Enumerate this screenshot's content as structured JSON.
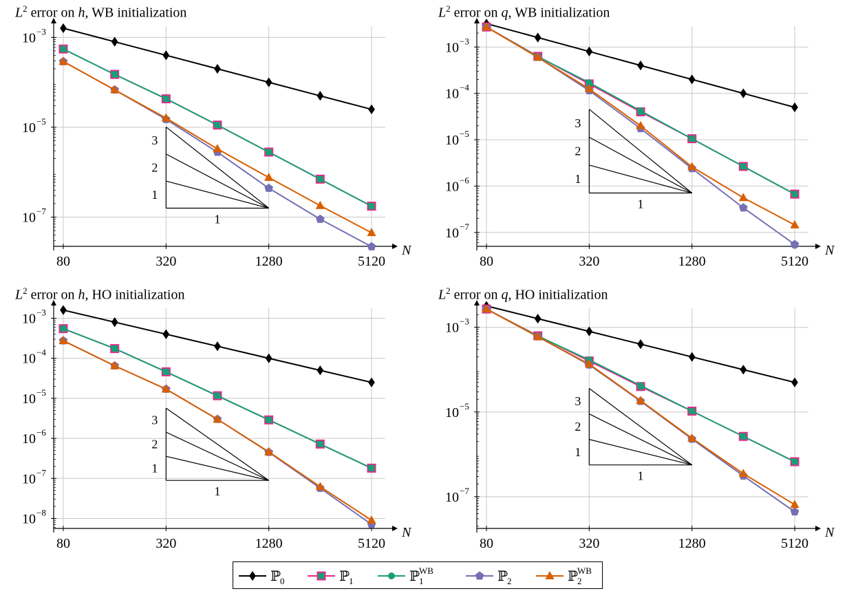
{
  "colors": {
    "P0": "#000000",
    "P1": "#e7298a",
    "P1WB": "#1b9e77",
    "P2": "#7570b3",
    "P2WB": "#d95f02",
    "grid": "#c8c8c8"
  },
  "legend": {
    "items": [
      {
        "key": "P0",
        "label": "ℙ",
        "sub": "0",
        "sup": "",
        "marker": "diamond"
      },
      {
        "key": "P1",
        "label": "ℙ",
        "sub": "1",
        "sup": "",
        "marker": "square"
      },
      {
        "key": "P1WB",
        "label": "ℙ",
        "sub": "1",
        "sup": "WB",
        "marker": "circle"
      },
      {
        "key": "P2",
        "label": "ℙ",
        "sub": "2",
        "sup": "",
        "marker": "pentagon"
      },
      {
        "key": "P2WB",
        "label": "ℙ",
        "sub": "2",
        "sup": "WB",
        "marker": "triangle"
      }
    ]
  },
  "chart_data": [
    {
      "type": "line",
      "title_prefix": "L",
      "title_sup": "2",
      "title_mid": " error on ",
      "title_var": "h",
      "title_suffix": ", WB initialization",
      "xlabel": "N",
      "xscale": "log2",
      "yscale": "log10",
      "x": [
        80,
        160,
        320,
        640,
        1280,
        2560,
        5120
      ],
      "xticks": [
        80,
        320,
        1280,
        5120
      ],
      "yticks": [
        -3,
        -5,
        -7
      ],
      "ylim_log": [
        -7.65,
        -2.75
      ],
      "slope_triangle": {
        "x0": 320,
        "x1": 1280,
        "y_base_log": -6.8,
        "labels": [
          "3",
          "2",
          "1"
        ],
        "base_label": "1"
      },
      "series": [
        {
          "key": "P0",
          "values": [
            0.0016,
            0.0008,
            0.0004,
            0.0002,
            0.0001,
            5e-05,
            2.5e-05
          ]
        },
        {
          "key": "P1",
          "values": [
            0.00055,
            0.00015,
            4.3e-05,
            1.12e-05,
            2.8e-06,
            7e-07,
            1.75e-07
          ]
        },
        {
          "key": "P1WB",
          "values": [
            0.00055,
            0.00015,
            4.3e-05,
            1.12e-05,
            2.8e-06,
            7e-07,
            1.75e-07
          ]
        },
        {
          "key": "P2",
          "values": [
            0.00029,
            6.8e-05,
            1.5e-05,
            2.8e-06,
            4.4e-07,
            9e-08,
            2.2e-08
          ]
        },
        {
          "key": "P2WB",
          "values": [
            0.00029,
            6.8e-05,
            1.6e-05,
            3.3e-06,
            7.6e-07,
            1.8e-07,
            4.5e-08
          ]
        }
      ]
    },
    {
      "type": "line",
      "title_prefix": "L",
      "title_sup": "2",
      "title_mid": " error on ",
      "title_var": "q",
      "title_suffix": ", WB initialization",
      "xlabel": "N",
      "xscale": "log2",
      "yscale": "log10",
      "x": [
        80,
        160,
        320,
        640,
        1280,
        2560,
        5120
      ],
      "xticks": [
        80,
        320,
        1280,
        5120
      ],
      "yticks": [
        -3,
        -4,
        -5,
        -6,
        -7
      ],
      "ylim_log": [
        -7.3,
        -2.55
      ],
      "slope_triangle": {
        "x0": 320,
        "x1": 1280,
        "y_base_log": -6.15,
        "labels": [
          "3",
          "2",
          "1"
        ],
        "base_label": "1"
      },
      "series": [
        {
          "key": "P0",
          "values": [
            0.0032,
            0.0016,
            0.0008,
            0.0004,
            0.0002,
            0.0001,
            5e-05
          ]
        },
        {
          "key": "P1",
          "values": [
            0.0027,
            0.00063,
            0.00016,
            4e-05,
            1.05e-05,
            2.65e-06,
            6.7e-07
          ]
        },
        {
          "key": "P1WB",
          "values": [
            0.0027,
            0.00062,
            0.00017,
            4.2e-05,
            1.05e-05,
            2.65e-06,
            6.7e-07
          ]
        },
        {
          "key": "P2",
          "values": [
            0.0027,
            0.0006,
            0.000115,
            1.75e-05,
            2.4e-06,
            3.4e-07,
            5.5e-08
          ]
        },
        {
          "key": "P2WB",
          "values": [
            0.0027,
            0.0006,
            0.000125,
            2e-05,
            2.6e-06,
            5.6e-07,
            1.45e-07
          ]
        }
      ]
    },
    {
      "type": "line",
      "title_prefix": "L",
      "title_sup": "2",
      "title_mid": " error on ",
      "title_var": "h",
      "title_suffix": ", HO initialization",
      "xlabel": "N",
      "xscale": "log2",
      "yscale": "log10",
      "x": [
        80,
        160,
        320,
        640,
        1280,
        2560,
        5120
      ],
      "xticks": [
        80,
        320,
        1280,
        5120
      ],
      "yticks": [
        -3,
        -4,
        -5,
        -6,
        -7,
        -8
      ],
      "ylim_log": [
        -8.25,
        -2.75
      ],
      "slope_triangle": {
        "x0": 320,
        "x1": 1280,
        "y_base_log": -7.05,
        "labels": [
          "3",
          "2",
          "1"
        ],
        "base_label": "1"
      },
      "series": [
        {
          "key": "P0",
          "values": [
            0.0016,
            0.0008,
            0.0004,
            0.0002,
            0.0001,
            5e-05,
            2.5e-05
          ]
        },
        {
          "key": "P1",
          "values": [
            0.00055,
            0.000175,
            4.6e-05,
            1.16e-05,
            2.9e-06,
            7.2e-07,
            1.8e-07
          ]
        },
        {
          "key": "P1WB",
          "values": [
            0.00055,
            0.000175,
            4.6e-05,
            1.16e-05,
            2.9e-06,
            7.2e-07,
            1.8e-07
          ]
        },
        {
          "key": "P2",
          "values": [
            0.000275,
            6.5e-05,
            1.7e-05,
            3e-06,
            4.5e-07,
            5.7e-08,
            7.1e-09
          ]
        },
        {
          "key": "P2WB",
          "values": [
            0.000275,
            6.5e-05,
            1.7e-05,
            3e-06,
            4.6e-07,
            6.2e-08,
            9e-09
          ]
        }
      ]
    },
    {
      "type": "line",
      "title_prefix": "L",
      "title_sup": "2",
      "title_mid": " error on ",
      "title_var": "q",
      "title_suffix": ", HO initialization",
      "xlabel": "N",
      "xscale": "log2",
      "yscale": "log10",
      "x": [
        80,
        160,
        320,
        640,
        1280,
        2560,
        5120
      ],
      "xticks": [
        80,
        320,
        1280,
        5120
      ],
      "yticks": [
        -3,
        -5,
        -7
      ],
      "ylim_log": [
        -7.75,
        -2.55
      ],
      "slope_triangle": {
        "x0": 320,
        "x1": 1280,
        "y_base_log": -6.25,
        "labels": [
          "3",
          "2",
          "1"
        ],
        "base_label": "1"
      },
      "series": [
        {
          "key": "P0",
          "values": [
            0.0032,
            0.0016,
            0.0008,
            0.0004,
            0.0002,
            0.0001,
            5e-05
          ]
        },
        {
          "key": "P1",
          "values": [
            0.0027,
            0.00063,
            0.00016,
            4e-05,
            1.05e-05,
            2.65e-06,
            6.7e-07
          ]
        },
        {
          "key": "P1WB",
          "values": [
            0.0027,
            0.00062,
            0.00017,
            4.2e-05,
            1.05e-05,
            2.65e-06,
            6.7e-07
          ]
        },
        {
          "key": "P2",
          "values": [
            0.0027,
            0.0006,
            0.00013,
            1.8e-05,
            2.3e-06,
            3.1e-07,
            4.4e-08
          ]
        },
        {
          "key": "P2WB",
          "values": [
            0.0027,
            0.0006,
            0.000135,
            1.85e-05,
            2.4e-06,
            3.5e-07,
            6.5e-08
          ]
        }
      ]
    }
  ]
}
